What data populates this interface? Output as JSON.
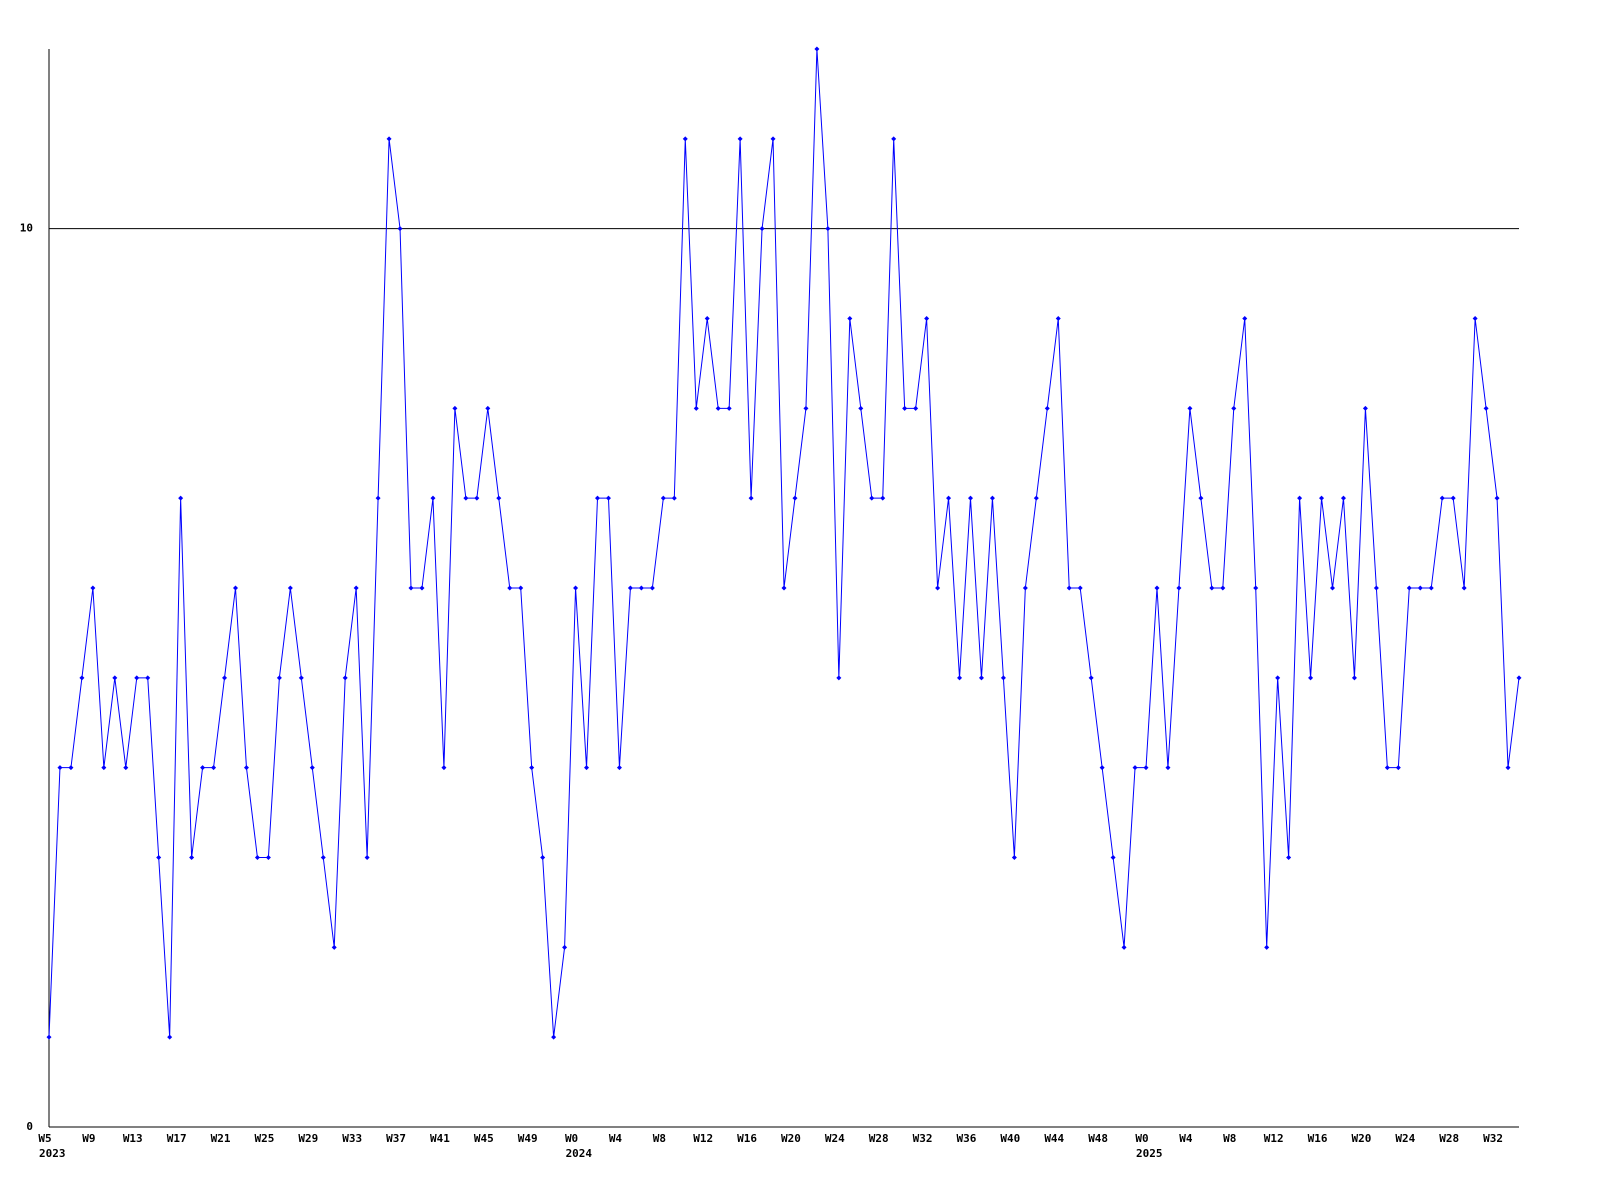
{
  "chart_data": {
    "type": "line",
    "categories": [
      "W5",
      null,
      null,
      null,
      "W9",
      null,
      null,
      null,
      "W13",
      null,
      null,
      null,
      "W17",
      null,
      null,
      null,
      "W21",
      null,
      null,
      null,
      "W25",
      null,
      null,
      null,
      "W29",
      null,
      null,
      null,
      "W33",
      null,
      null,
      null,
      "W37",
      null,
      null,
      null,
      "W41",
      null,
      null,
      null,
      "W45",
      null,
      null,
      null,
      "W49",
      null,
      null,
      null,
      "W0",
      null,
      null,
      null,
      "W4",
      null,
      null,
      null,
      "W8",
      null,
      null,
      null,
      "W12",
      null,
      null,
      null,
      "W16",
      null,
      null,
      null,
      "W20",
      null,
      null,
      null,
      "W24",
      null,
      null,
      null,
      "W28",
      null,
      null,
      null,
      "W32",
      null,
      null,
      null,
      "W36",
      null,
      null,
      null,
      "W40",
      null,
      null,
      null,
      "W44",
      null,
      null,
      null,
      "W48",
      null,
      null,
      null,
      "W0",
      null,
      null,
      null,
      "W4",
      null,
      null,
      null,
      "W8",
      null,
      null,
      null,
      "W12",
      null,
      null,
      null,
      "W16",
      null,
      null,
      null,
      "W20",
      null,
      null,
      null,
      "W24",
      null,
      null,
      null,
      "W28",
      null,
      null,
      null,
      "W32",
      null,
      null
    ],
    "x_group_labels": [
      {
        "index": 0,
        "label": "2023"
      },
      {
        "index": 48,
        "label": "2024"
      },
      {
        "index": 100,
        "label": "2025"
      }
    ],
    "series": [
      {
        "color": "#0000ff",
        "values": [
          1,
          4,
          4,
          5,
          6,
          4,
          5,
          4,
          5,
          5,
          3,
          1,
          7,
          3,
          4,
          4,
          5,
          6,
          4,
          3,
          3,
          5,
          6,
          5,
          4,
          3,
          2,
          5,
          6,
          3,
          7,
          11,
          10,
          6,
          6,
          7,
          4,
          8,
          7,
          7,
          8,
          7,
          6,
          6,
          4,
          3,
          1,
          2,
          6,
          4,
          7,
          7,
          4,
          6,
          6,
          6,
          7,
          7,
          11,
          8,
          9,
          8,
          8,
          11,
          7,
          10,
          11,
          6,
          7,
          8,
          12,
          10,
          5,
          9,
          8,
          7,
          7,
          11,
          8,
          8,
          9,
          6,
          7,
          5,
          7,
          5,
          7,
          5,
          3,
          6,
          7,
          8,
          9,
          6,
          6,
          5,
          4,
          3,
          2,
          4,
          4,
          6,
          4,
          6,
          8,
          7,
          6,
          6,
          8,
          9,
          6,
          2,
          5,
          3,
          7,
          5,
          7,
          6,
          7,
          5,
          8,
          6,
          4,
          4,
          6,
          6,
          6,
          7,
          7,
          6,
          9,
          8,
          7,
          4,
          5
        ]
      }
    ],
    "ylim": [
      0,
      12
    ],
    "yticks": [
      0,
      10
    ],
    "grid": true
  }
}
